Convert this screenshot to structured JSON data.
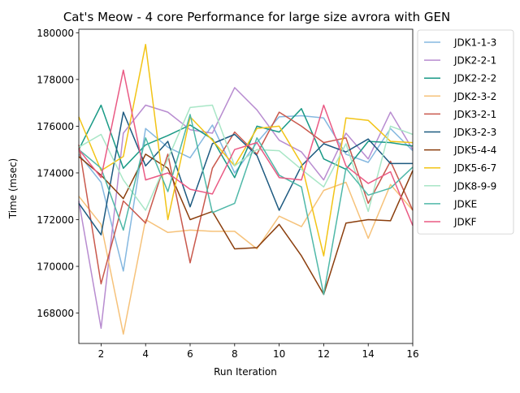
{
  "chart_data": {
    "type": "line",
    "title": "Cat's Meow - 4 core Performance for large size avrora with GEN",
    "xlabel": "Run Iteration",
    "ylabel": "Time (msec)",
    "xlim": [
      1,
      16
    ],
    "ylim": [
      166700,
      180150
    ],
    "x": [
      1,
      2,
      3,
      4,
      5,
      6,
      7,
      8,
      9,
      10,
      11,
      12,
      13,
      14,
      15,
      16
    ],
    "xticks": [
      2,
      4,
      6,
      8,
      10,
      12,
      14,
      16
    ],
    "yticks": [
      168000,
      170000,
      172000,
      174000,
      176000,
      178000,
      180000
    ],
    "legend_position": "right-outside-top",
    "grid": false,
    "series": [
      {
        "name": "JDK1-1-3",
        "color": "#85b8e0",
        "values": [
          174800,
          173600,
          169800,
          175900,
          175100,
          174650,
          176050,
          174000,
          175300,
          176400,
          176450,
          176350,
          174800,
          174450,
          175900,
          174950
        ]
      },
      {
        "name": "JDK2-2-1",
        "color": "#b88cd0",
        "values": [
          172800,
          167350,
          175700,
          176900,
          176600,
          175850,
          175700,
          177650,
          176700,
          175400,
          174900,
          173700,
          175700,
          174600,
          176600,
          175000
        ]
      },
      {
        "name": "JDK2-2-2",
        "color": "#1a9a86",
        "values": [
          175000,
          176900,
          174200,
          175200,
          175600,
          176050,
          175450,
          173800,
          176000,
          175750,
          176750,
          174600,
          174150,
          175350,
          175300,
          175150
        ]
      },
      {
        "name": "JDK2-3-2",
        "color": "#f6c27a",
        "values": [
          173000,
          171800,
          167100,
          172000,
          171450,
          171550,
          171500,
          171500,
          170750,
          172150,
          171700,
          173250,
          173600,
          171200,
          173500,
          172400
        ]
      },
      {
        "name": "JDK3-2-1",
        "color": "#c9594d",
        "values": [
          175200,
          169250,
          172800,
          171850,
          174800,
          170150,
          174200,
          175750,
          174800,
          176600,
          176000,
          175300,
          175500,
          172700,
          174500,
          172400
        ]
      },
      {
        "name": "JDK3-2-3",
        "color": "#1d5a80",
        "values": [
          172700,
          171350,
          176600,
          174300,
          175350,
          172550,
          175250,
          175650,
          174750,
          172400,
          174300,
          175250,
          174900,
          175450,
          174400,
          174400
        ]
      },
      {
        "name": "JDK5-4-4",
        "color": "#8b3e0d",
        "values": [
          174700,
          173900,
          172900,
          174800,
          174200,
          172000,
          172350,
          170750,
          170800,
          171800,
          170450,
          168800,
          171850,
          172000,
          171950,
          174100
        ]
      },
      {
        "name": "JDK5-6-7",
        "color": "#f2c416",
        "values": [
          176400,
          174100,
          174700,
          179500,
          172000,
          176400,
          175400,
          174300,
          175900,
          176000,
          174400,
          170450,
          176350,
          176250,
          175350,
          175300
        ]
      },
      {
        "name": "JDK8-9-9",
        "color": "#a8e6c6",
        "values": [
          175100,
          175650,
          173700,
          172400,
          174600,
          176800,
          176900,
          174300,
          175000,
          174950,
          174150,
          173400,
          175250,
          172350,
          176000,
          175650
        ]
      },
      {
        "name": "JDKE",
        "color": "#4fb8a8",
        "values": [
          175000,
          174200,
          171550,
          175500,
          173200,
          176500,
          172300,
          172700,
          175500,
          173900,
          173400,
          168800,
          174200,
          173050,
          173350,
          174250
        ]
      },
      {
        "name": "JDKF",
        "color": "#ea5a84",
        "values": [
          175000,
          173800,
          178400,
          173700,
          174000,
          173300,
          173100,
          175000,
          175300,
          173800,
          173700,
          176900,
          174300,
          173550,
          174050,
          171750
        ]
      }
    ]
  }
}
